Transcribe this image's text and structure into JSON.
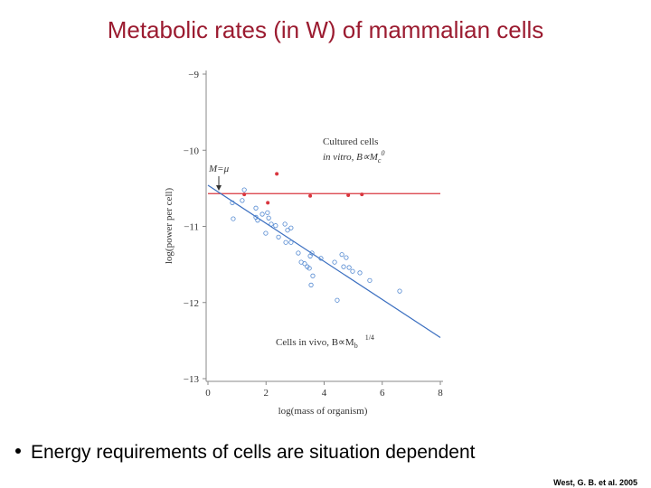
{
  "title": "Metabolic rates (in W) of mammalian cells",
  "bullet": "Energy requirements of cells are situation dependent",
  "citation": "West, G. B. et al. 2005",
  "chart_data": {
    "type": "scatter",
    "xlabel": "log(mass of organism)",
    "ylabel": "log(power per cell)",
    "xlim": [
      0,
      8
    ],
    "ylim": [
      -13,
      -9
    ],
    "xticks": [
      0,
      2,
      4,
      6,
      8
    ],
    "yticks": [
      {
        "value": -9,
        "label": "−9"
      },
      {
        "value": -10,
        "label": "−10"
      },
      {
        "value": -11,
        "label": "−11"
      },
      {
        "value": -12,
        "label": "−12"
      },
      {
        "value": -13,
        "label": "−13"
      }
    ],
    "series": [
      {
        "color": "#d9363e",
        "marker": "filled",
        "x": [
          1.25,
          2.37,
          2.06,
          3.52,
          4.83,
          5.3
        ],
        "y": [
          -10.58,
          -10.31,
          -10.69,
          -10.6,
          -10.59,
          -10.58
        ]
      },
      {
        "color": "#4f86d0",
        "marker": "open",
        "x": [
          0.84,
          1.18,
          1.25,
          0.87,
          1.65,
          1.65,
          1.71,
          1.87,
          2.05,
          2.09,
          2.18,
          1.99,
          2.33,
          2.43,
          2.65,
          2.74,
          2.86,
          2.68,
          2.86,
          3.11,
          3.21,
          3.42,
          3.52,
          3.58,
          3.49,
          3.61,
          3.55,
          3.89,
          4.36,
          4.61,
          4.76,
          4.86,
          4.67,
          4.98,
          5.23,
          5.57,
          4.45,
          6.6,
          3.33
        ],
        "y": [
          -10.69,
          -10.66,
          -10.52,
          -10.9,
          -10.76,
          -10.88,
          -10.92,
          -10.84,
          -10.82,
          -10.89,
          -10.97,
          -11.09,
          -10.99,
          -11.14,
          -10.97,
          -11.05,
          -11.02,
          -11.21,
          -11.21,
          -11.35,
          -11.47,
          -11.53,
          -11.39,
          -11.35,
          -11.55,
          -11.65,
          -11.77,
          -11.42,
          -11.47,
          -11.37,
          -11.41,
          -11.54,
          -11.53,
          -11.59,
          -11.61,
          -11.71,
          -11.97,
          -11.85,
          -11.49
        ]
      }
    ],
    "reference_lines": [
      {
        "color": "#d9363e",
        "x": [
          0,
          8
        ],
        "y": [
          -10.57,
          -10.57
        ]
      },
      {
        "color": "#3b6fc0",
        "x": [
          0,
          8
        ],
        "y": [
          -10.46,
          -12.46
        ]
      }
    ],
    "annotations": [
      {
        "text": "Cultured cells"
      },
      {
        "text": "in vitro, B∝M",
        "sub": "c",
        "sup": "0"
      },
      {
        "text": "M=μ"
      },
      {
        "text": "Cells in vivo, B∝M",
        "sub": "b",
        "sup": "1/4"
      }
    ]
  }
}
